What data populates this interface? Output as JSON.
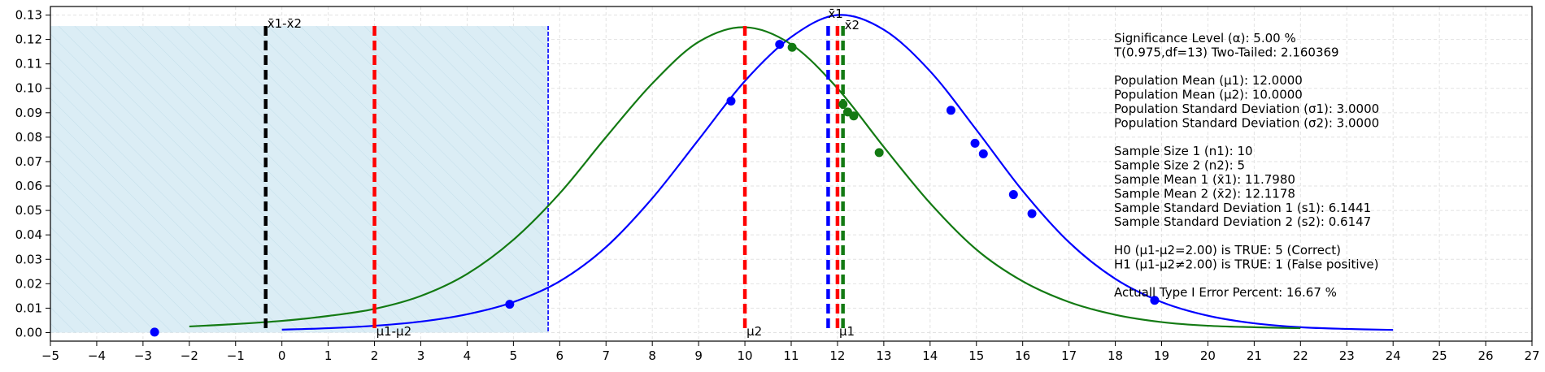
{
  "chart_data": {
    "type": "line",
    "xlim": [
      -5,
      27
    ],
    "ylim": [
      -0.0035,
      0.1335
    ],
    "x_ticks": [
      -5,
      -4,
      -3,
      -2,
      -1,
      0,
      1,
      2,
      3,
      4,
      5,
      6,
      7,
      8,
      9,
      10,
      11,
      12,
      13,
      14,
      15,
      16,
      17,
      18,
      19,
      20,
      21,
      22,
      23,
      24,
      25,
      26,
      27
    ],
    "y_ticks": [
      0.0,
      0.01,
      0.02,
      0.03,
      0.04,
      0.05,
      0.06,
      0.07,
      0.08,
      0.09,
      0.1,
      0.11,
      0.12,
      0.13
    ],
    "grid": true,
    "colors": {
      "blue": "#0000ff",
      "green": "#137a13",
      "red": "#ff0000",
      "black": "#000000",
      "region_fill": "#dbedf5",
      "region_hatch": "#c3deea"
    },
    "series": [
      {
        "color": "#0000ff",
        "x": [
          0,
          1,
          2,
          3,
          4,
          5,
          6,
          7,
          8,
          9,
          10,
          11,
          12,
          13,
          14,
          15,
          16,
          17,
          18,
          19,
          20,
          21,
          22,
          23,
          24
        ],
        "y": [
          0.0012,
          0.0018,
          0.0028,
          0.0045,
          0.0075,
          0.0125,
          0.021,
          0.035,
          0.055,
          0.079,
          0.103,
          0.121,
          0.13,
          0.124,
          0.107,
          0.083,
          0.058,
          0.037,
          0.022,
          0.0125,
          0.0069,
          0.0038,
          0.0022,
          0.0015,
          0.0011
        ]
      },
      {
        "color": "#137a13",
        "x": [
          -2,
          -1,
          0,
          1,
          2,
          3,
          4,
          5,
          6,
          7,
          8,
          9,
          10,
          11,
          12,
          13,
          14,
          15,
          16,
          17,
          18,
          19,
          20,
          21,
          22
        ],
        "y": [
          0.0025,
          0.0035,
          0.0048,
          0.0068,
          0.0097,
          0.015,
          0.024,
          0.038,
          0.057,
          0.08,
          0.102,
          0.119,
          0.125,
          0.118,
          0.1,
          0.076,
          0.053,
          0.034,
          0.021,
          0.0125,
          0.0073,
          0.0043,
          0.0028,
          0.0022,
          0.0018
        ]
      }
    ],
    "points_blue": [
      {
        "x": -2.75,
        "y": 0.0002
      },
      {
        "x": 4.92,
        "y": 0.0116
      },
      {
        "x": 9.7,
        "y": 0.0948
      },
      {
        "x": 10.75,
        "y": 0.118
      },
      {
        "x": 14.45,
        "y": 0.091
      },
      {
        "x": 14.97,
        "y": 0.0775
      },
      {
        "x": 15.15,
        "y": 0.0732
      },
      {
        "x": 15.8,
        "y": 0.0565
      },
      {
        "x": 16.2,
        "y": 0.0487
      },
      {
        "x": 18.85,
        "y": 0.0132
      }
    ],
    "points_green": [
      {
        "x": 11.02,
        "y": 0.1168
      },
      {
        "x": 12.12,
        "y": 0.0935
      },
      {
        "x": 12.22,
        "y": 0.0903
      },
      {
        "x": 12.35,
        "y": 0.0887
      },
      {
        "x": 12.9,
        "y": 0.0737
      }
    ],
    "shaded_region": {
      "x_from": -5,
      "x_to": 5.75,
      "y_top": 0.1255
    },
    "vlines": [
      {
        "x": -0.35,
        "color": "#000000",
        "label": "x̄1-x̄2",
        "label_pos": "top"
      },
      {
        "x": 2.0,
        "color": "#ff0000",
        "label": "μ1-μ2",
        "label_pos": "bottom"
      },
      {
        "x": 10.0,
        "color": "#ff0000",
        "label": "μ2",
        "label_pos": "bottom"
      },
      {
        "x": 11.798,
        "color": "#0000ff",
        "label": "x̄1",
        "label_pos": "top"
      },
      {
        "x": 12.0,
        "color": "#ff0000",
        "label": "μ1",
        "label_pos": "bottom"
      },
      {
        "x": 12.1178,
        "color": "#137a13",
        "label": "x̄2",
        "label_pos": "top"
      }
    ],
    "critical_line": {
      "x": 5.75,
      "color": "#0000ff"
    },
    "annotations": [
      "Significance Level (α): 5.00 %",
      "T(0.975,df=13) Two-Tailed: 2.160369",
      "",
      "Population Mean (μ1): 12.0000",
      "Population Mean (μ2): 10.0000",
      "Population Standard Deviation (σ1): 3.0000",
      "Population Standard Deviation (σ2): 3.0000",
      "",
      "Sample Size 1 (n1): 10",
      "Sample Size 2 (n2): 5",
      "Sample Mean 1 (x̄1): 11.7980",
      "Sample Mean 2 (x̄2): 12.1178",
      "Sample Standard Deviation 1 (s1): 6.1441",
      "Sample Standard Deviation 2 (s2): 0.6147",
      "",
      "H0 (μ1-μ2=2.00) is TRUE: 5 (Correct)",
      "H1 (μ1-μ2≠2.00) is TRUE: 1 (False positive)",
      "",
      "Actuall Type I Error Percent: 16.67 %"
    ]
  }
}
